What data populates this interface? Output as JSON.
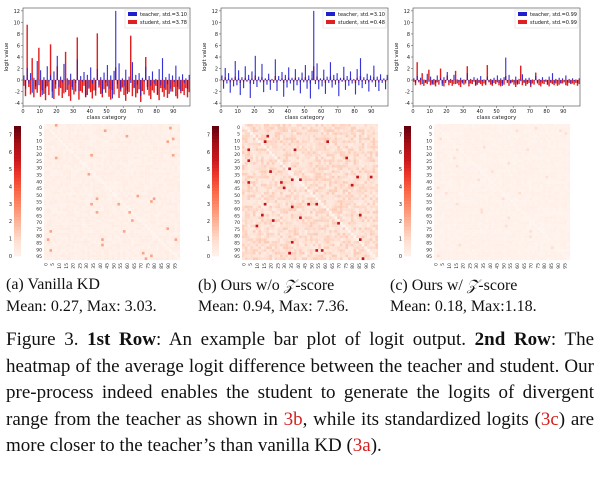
{
  "colors": {
    "teacher": "#1f1fd0",
    "student": "#e02020",
    "heat_low": "#fff5f0",
    "heat_high": "#67000d",
    "ref": "#d62020"
  },
  "bar_common": {
    "ylabel": "logit value",
    "xlabel": "class category",
    "x_ticks": [
      "0",
      "10",
      "20",
      "30",
      "40",
      "50",
      "60",
      "70",
      "80",
      "90"
    ]
  },
  "heat_common": {
    "y_ticks": [
      "0",
      "5",
      "10",
      "15",
      "20",
      "25",
      "30",
      "35",
      "40",
      "45",
      "50",
      "55",
      "60",
      "65",
      "70",
      "75",
      "80",
      "85",
      "90",
      "95"
    ],
    "x_ticks": [
      "0",
      "5",
      "10",
      "15",
      "20",
      "25",
      "30",
      "35",
      "40",
      "45",
      "50",
      "55",
      "60",
      "65",
      "70",
      "75",
      "80",
      "85",
      "90",
      "95"
    ]
  },
  "panels": [
    {
      "sub_caption": "(a) Vanilla KD",
      "stats": "Mean: 0.27, Max: 3.03.",
      "bar": {
        "yticks": [
          "12",
          "10",
          "8",
          "6",
          "4",
          "2",
          "0",
          "-2",
          "-4"
        ],
        "legend_teacher": "teacher, std.=3.10",
        "legend_student": "student, std.=3.78"
      },
      "heat": {
        "cbar_ticks": [
          "7",
          "6",
          "5",
          "4",
          "3",
          "2",
          "1",
          "0"
        ]
      }
    },
    {
      "sub_caption": "(b) Ours w/o",
      "sub_caption_tail": "-score",
      "stats": "Mean: 0.94, Max: 7.36.",
      "bar": {
        "yticks": [
          "12",
          "10",
          "8",
          "6",
          "4",
          "2",
          "0",
          "-2",
          "-4"
        ],
        "legend_teacher": "teacher, std.=3.10",
        "legend_student": "student, std.=0.48"
      },
      "heat": {
        "cbar_ticks": [
          "7",
          "6",
          "5",
          "4",
          "3",
          "2",
          "1",
          "0"
        ]
      }
    },
    {
      "sub_caption": "(c) Ours w/",
      "sub_caption_tail": "-score",
      "stats": "Mean: 0.18, Max:1.18.",
      "bar": {
        "yticks": [
          "12",
          "10",
          "8",
          "6",
          "4",
          "2",
          "0",
          "-2",
          "-4"
        ],
        "legend_teacher": "teacher, std.=0.99",
        "legend_student": "student, std.=0.99"
      },
      "heat": {
        "cbar_ticks": [
          "7",
          "6",
          "5",
          "4",
          "3",
          "2",
          "1",
          "0"
        ]
      }
    }
  ],
  "math_z": "𝒵",
  "caption": {
    "fig": "Figure 3.",
    "row1_bold": "1st Row",
    "row1_text": ": An example bar plot of logit output.",
    "row2_bold": "2nd Row",
    "row2_text": ": The heatmap of the average logit difference between the teacher and student. Our pre-process indeed enables the student to generate the logits of divergent range from the teacher as shown in",
    "ref_b": "3b",
    "mid_text": ", while its standardized logits (",
    "ref_c": "3c",
    "mid2_text": ") are more closer to the teacher’s than vanilla KD (",
    "ref_a": "3a",
    "end_text": ")."
  },
  "chart_data": [
    {
      "type": "bar",
      "title": "",
      "xlabel": "class category",
      "ylabel": "logit value",
      "ylim": [
        -4.5,
        12.5
      ],
      "xlim": [
        0,
        100
      ],
      "legend": "top-right",
      "series": [
        {
          "name": "teacher, std.=3.10",
          "values": [
            0.8,
            -1.5,
            2.1,
            -0.6,
            1.2,
            -2.2,
            0.4,
            -1.1,
            3.3,
            -0.9,
            1.7,
            -2.6,
            0.5,
            -1.4,
            2.4,
            -0.3,
            0.9,
            -3.1,
            1.5,
            -0.7,
            4.2,
            -1.2,
            0.6,
            -0.4,
            2.8,
            -2.1,
            0.3,
            -0.8,
            1.1,
            -1.7,
            0.2,
            -0.5,
            3.6,
            -1.9,
            0.7,
            -0.2,
            1.4,
            -2.9,
            0.9,
            -1.3,
            2.2,
            -0.6,
            0.4,
            -1.8,
            1.9,
            -0.9,
            0.5,
            -2.3,
            1.3,
            -0.4,
            2.6,
            -1.5,
            0.8,
            -3.2,
            1.6,
            12.0,
            -0.7,
            2.9,
            -1.6,
            0.3,
            -1.1,
            1.8,
            -2.4,
            0.6,
            -0.5,
            3.1,
            -1.3,
            0.9,
            -0.8,
            1.2,
            -2.8,
            0.4,
            -0.3,
            2.3,
            -1.7,
            0.7,
            -1.0,
            1.5,
            -0.6,
            0.2,
            -2.5,
            1.9,
            -0.9,
            3.8,
            -1.4,
            0.5,
            -0.7,
            1.1,
            -2.0,
            0.8,
            -0.4,
            2.5,
            -1.2,
            0.6,
            -1.9,
            1.0,
            -0.5,
            0.3,
            -1.6,
            0.9
          ]
        },
        {
          "name": "student, std.=3.78",
          "values": [
            -1.0,
            -2.8,
            9.6,
            -1.2,
            -2.5,
            3.8,
            -3.0,
            -1.6,
            -2.2,
            5.6,
            -2.9,
            -1.8,
            -2.4,
            -3.5,
            -1.1,
            -2.6,
            6.2,
            -2.0,
            -3.3,
            -1.5,
            2.4,
            -2.7,
            -1.4,
            -3.1,
            -2.3,
            4.9,
            -1.7,
            -2.8,
            -3.6,
            -1.2,
            -2.5,
            -2.0,
            7.4,
            -3.4,
            -1.9,
            -2.2,
            -1.0,
            -3.0,
            -2.6,
            -1.5,
            -2.1,
            -3.2,
            -1.8,
            -2.7,
            8.1,
            -1.3,
            -2.4,
            -3.0,
            -1.6,
            -2.2,
            -1.1,
            -2.9,
            -3.4,
            -1.7,
            -2.5,
            2.2,
            -1.5,
            -3.1,
            -2.0,
            -1.3,
            -2.6,
            -3.6,
            -1.8,
            -2.1,
            7.7,
            -2.8,
            -1.4,
            -3.0,
            -2.3,
            -1.6,
            -3.8,
            -1.9,
            -2.5,
            4.0,
            -1.2,
            -2.7,
            -3.3,
            -1.8,
            -2.2,
            -1.0,
            -2.6,
            -3.5,
            -1.4,
            -2.1,
            -2.9,
            -1.7,
            -3.1,
            -2.4,
            -1.5,
            -2.0,
            -1.2,
            -2.8,
            -3.2,
            -1.6,
            -2.3,
            -1.9,
            -2.6,
            -1.4,
            -3.0,
            -2.1
          ]
        }
      ]
    },
    {
      "type": "bar",
      "title": "",
      "xlabel": "class category",
      "ylabel": "logit value",
      "ylim": [
        -4.5,
        12.5
      ],
      "xlim": [
        0,
        100
      ],
      "legend": "top-right",
      "series": [
        {
          "name": "teacher, std.=3.10",
          "values": [
            0.8,
            -1.5,
            2.1,
            -0.6,
            1.2,
            -2.2,
            0.4,
            -1.1,
            3.3,
            -0.9,
            1.7,
            -2.6,
            0.5,
            -1.4,
            2.4,
            -0.3,
            0.9,
            -3.1,
            1.5,
            -0.7,
            4.2,
            -1.2,
            0.6,
            -0.4,
            2.8,
            -2.1,
            0.3,
            -0.8,
            1.1,
            -1.7,
            0.2,
            -0.5,
            3.6,
            -1.9,
            0.7,
            -0.2,
            1.4,
            -2.9,
            0.9,
            -1.3,
            2.2,
            -0.6,
            0.4,
            -1.8,
            1.9,
            -0.9,
            0.5,
            -2.3,
            1.3,
            -0.4,
            2.6,
            -1.5,
            0.8,
            -3.2,
            1.6,
            12.0,
            -0.7,
            2.9,
            -1.6,
            0.3,
            -1.1,
            1.8,
            -2.4,
            0.6,
            -0.5,
            3.1,
            -1.3,
            0.9,
            -0.8,
            1.2,
            -2.8,
            0.4,
            -0.3,
            2.3,
            -1.7,
            0.7,
            -1.0,
            1.5,
            -0.6,
            0.2,
            -2.5,
            1.9,
            -0.9,
            3.8,
            -1.4,
            0.5,
            -0.7,
            1.1,
            -2.0,
            0.8,
            -0.4,
            2.5,
            -1.2,
            0.6,
            -1.9,
            1.0,
            -0.5,
            0.3,
            -1.6,
            0.9
          ]
        },
        {
          "name": "student, std.=0.48",
          "values": [
            0.1,
            -0.3,
            0.5,
            -0.1,
            0.2,
            -0.4,
            0.1,
            -0.2,
            0.6,
            -0.2,
            0.3,
            -0.5,
            0.1,
            -0.3,
            0.4,
            -0.1,
            0.2,
            -0.6,
            0.3,
            -0.1,
            0.8,
            -0.2,
            0.1,
            -0.1,
            0.5,
            -0.4,
            0.1,
            -0.2,
            0.2,
            -0.3,
            0.0,
            -0.1,
            0.7,
            -0.4,
            0.1,
            0.0,
            0.3,
            -0.5,
            0.2,
            -0.3,
            0.4,
            -0.1,
            0.1,
            -0.3,
            0.4,
            -0.2,
            0.1,
            -0.4,
            0.3,
            -0.1,
            0.5,
            -0.3,
            0.2,
            -0.6,
            0.3,
            2.4,
            -0.1,
            0.6,
            -0.3,
            0.1,
            -0.2,
            0.3,
            -0.5,
            0.1,
            -0.1,
            0.6,
            -0.3,
            0.2,
            -0.2,
            0.2,
            -0.5,
            0.1,
            -0.1,
            0.4,
            -0.3,
            0.1,
            -0.2,
            0.3,
            -0.1,
            0.0,
            -0.5,
            0.4,
            -0.2,
            0.7,
            -0.3,
            0.1,
            -0.1,
            0.2,
            -0.4,
            0.2,
            -0.1,
            0.5,
            -0.2,
            0.1,
            -0.4,
            0.2,
            -0.1,
            0.1,
            -0.3,
            0.2
          ]
        }
      ]
    },
    {
      "type": "bar",
      "title": "",
      "xlabel": "class category",
      "ylabel": "logit value",
      "ylim": [
        -4.5,
        12.5
      ],
      "xlim": [
        0,
        100
      ],
      "legend": "top-right",
      "series": [
        {
          "name": "teacher, std.=0.99",
          "values": [
            0.3,
            -0.5,
            0.7,
            -0.2,
            0.4,
            -0.7,
            0.1,
            -0.4,
            1.1,
            -0.3,
            0.6,
            -0.8,
            0.2,
            -0.5,
            0.8,
            -0.1,
            0.3,
            -1.0,
            0.5,
            -0.2,
            1.4,
            -0.4,
            0.2,
            -0.1,
            0.9,
            -0.7,
            0.1,
            -0.3,
            0.4,
            -0.6,
            0.1,
            -0.2,
            1.2,
            -0.6,
            0.2,
            -0.1,
            0.5,
            -0.9,
            0.3,
            -0.4,
            0.7,
            -0.2,
            0.1,
            -0.6,
            0.6,
            -0.3,
            0.2,
            -0.7,
            0.4,
            -0.1,
            0.8,
            -0.5,
            0.3,
            -1.0,
            0.5,
            3.9,
            -0.2,
            0.9,
            -0.5,
            0.1,
            -0.4,
            0.6,
            -0.8,
            0.2,
            -0.2,
            1.0,
            -0.4,
            0.3,
            -0.3,
            0.4,
            -0.9,
            0.1,
            -0.1,
            0.7,
            -0.6,
            0.2,
            -0.3,
            0.5,
            -0.2,
            0.1,
            -0.8,
            0.6,
            -0.3,
            1.2,
            -0.5,
            0.2,
            -0.2,
            0.4,
            -0.6,
            0.3,
            -0.1,
            0.8,
            -0.4,
            0.2,
            -0.6,
            0.3,
            -0.2,
            0.1,
            -0.5,
            0.3
          ]
        },
        {
          "name": "student, std.=0.99",
          "values": [
            -0.3,
            -0.9,
            3.1,
            -0.4,
            -0.8,
            1.2,
            -1.0,
            -0.5,
            -0.7,
            1.8,
            -0.9,
            -0.6,
            -0.8,
            -1.1,
            -0.4,
            -0.8,
            2.0,
            -0.6,
            -1.1,
            -0.5,
            0.8,
            -0.9,
            -0.5,
            -1.0,
            -0.7,
            1.6,
            -0.6,
            -0.9,
            -1.2,
            -0.4,
            -0.8,
            -0.6,
            2.4,
            -1.1,
            -0.6,
            -0.7,
            -0.3,
            -1.0,
            -0.8,
            -0.5,
            -0.7,
            -1.0,
            -0.6,
            -0.9,
            2.6,
            -0.4,
            -0.8,
            -1.0,
            -0.5,
            -0.7,
            -0.4,
            -0.9,
            -1.1,
            -0.6,
            -0.8,
            0.7,
            -0.5,
            -1.0,
            -0.6,
            -0.4,
            -0.8,
            -1.2,
            -0.6,
            -0.7,
            2.5,
            -0.9,
            -0.5,
            -1.0,
            -0.7,
            -0.5,
            -1.2,
            -0.6,
            -0.8,
            1.3,
            -0.4,
            -0.9,
            -1.1,
            -0.6,
            -0.7,
            -0.3,
            -0.8,
            -1.1,
            -0.5,
            -0.7,
            -0.9,
            -0.6,
            -1.0,
            -0.8,
            -0.5,
            -0.6,
            -0.4,
            -0.9,
            -1.0,
            -0.5,
            -0.7,
            -0.6,
            -0.8,
            -0.5,
            -1.0,
            -0.7
          ]
        }
      ]
    },
    {
      "type": "heatmap",
      "title": "",
      "rows": 100,
      "cols": 100,
      "mean": 0.27,
      "max": 3.03,
      "color_range": [
        0,
        7.5
      ]
    },
    {
      "type": "heatmap",
      "title": "",
      "rows": 100,
      "cols": 100,
      "mean": 0.94,
      "max": 7.36,
      "color_range": [
        0,
        7.5
      ]
    },
    {
      "type": "heatmap",
      "title": "",
      "rows": 100,
      "cols": 100,
      "mean": 0.18,
      "max": 1.18,
      "color_range": [
        0,
        7.5
      ]
    }
  ]
}
